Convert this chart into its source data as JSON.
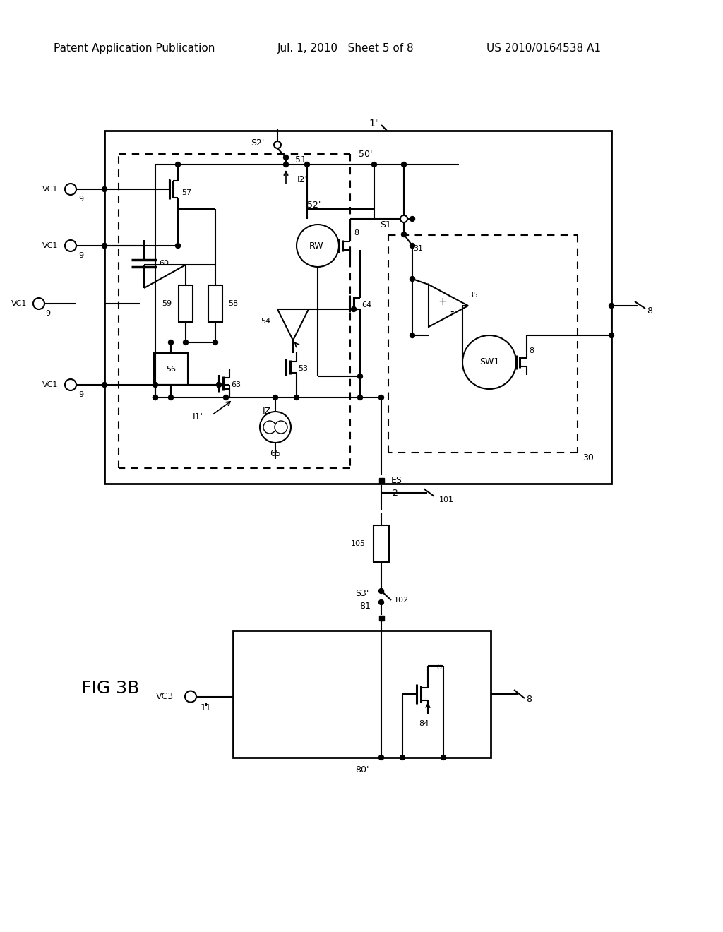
{
  "bg": "#ffffff",
  "lc": "#000000",
  "header_left": "Patent Application Publication",
  "header_mid": "Jul. 1, 2010   Sheet 5 of 8",
  "header_right": "US 2010/0164538 A1",
  "fig_label": "FIG 3B"
}
